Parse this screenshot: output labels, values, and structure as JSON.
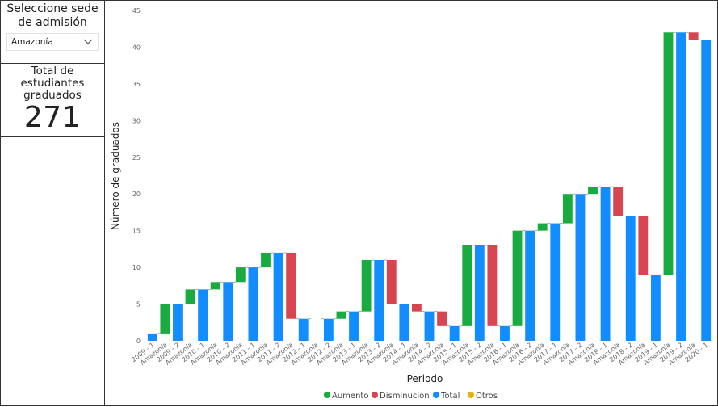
{
  "slicer": {
    "title": "Seleccione sede de admisión",
    "selected": "Amazonía"
  },
  "card": {
    "title": "Total de estudiantes graduados",
    "value": "271"
  },
  "colors": {
    "increase": "#1AAB40",
    "decrease": "#D64550",
    "total": "#118DFF",
    "other": "#E5B300"
  },
  "chart_data": {
    "type": "bar",
    "subtype": "waterfall",
    "xlabel": "Periodo",
    "ylabel": "Número de graduados",
    "ylim": [
      0,
      45
    ],
    "yticks": [
      0,
      5,
      10,
      15,
      20,
      25,
      30,
      35,
      40,
      45
    ],
    "legend": [
      "Aumento",
      "Disminución",
      "Total",
      "Otros"
    ],
    "legend_position": "bottom",
    "grid": false,
    "bars": [
      {
        "label": "2009 - 1",
        "kind": "total",
        "from": 0,
        "to": 1
      },
      {
        "label": "Amazonía",
        "kind": "increase",
        "from": 1,
        "to": 5
      },
      {
        "label": "2009 - 2",
        "kind": "total",
        "from": 0,
        "to": 5
      },
      {
        "label": "Amazonía",
        "kind": "increase",
        "from": 5,
        "to": 7
      },
      {
        "label": "2010 - 1",
        "kind": "total",
        "from": 0,
        "to": 7
      },
      {
        "label": "Amazonía",
        "kind": "increase",
        "from": 7,
        "to": 8
      },
      {
        "label": "2010 - 2",
        "kind": "total",
        "from": 0,
        "to": 8
      },
      {
        "label": "Amazonía",
        "kind": "increase",
        "from": 8,
        "to": 10
      },
      {
        "label": "2011 - 1",
        "kind": "total",
        "from": 0,
        "to": 10
      },
      {
        "label": "Amazonía",
        "kind": "increase",
        "from": 10,
        "to": 12
      },
      {
        "label": "2011 - 2",
        "kind": "total",
        "from": 0,
        "to": 12
      },
      {
        "label": "Amazonía",
        "kind": "decrease",
        "from": 12,
        "to": 3
      },
      {
        "label": "2012 - 1",
        "kind": "total",
        "from": 0,
        "to": 3
      },
      {
        "label": "Amazonía",
        "kind": "none",
        "from": 3,
        "to": 3
      },
      {
        "label": "2012 - 2",
        "kind": "total",
        "from": 0,
        "to": 3
      },
      {
        "label": "Amazonía",
        "kind": "increase",
        "from": 3,
        "to": 4
      },
      {
        "label": "2013 - 1",
        "kind": "total",
        "from": 0,
        "to": 4
      },
      {
        "label": "Amazonía",
        "kind": "increase",
        "from": 4,
        "to": 11
      },
      {
        "label": "2013 - 2",
        "kind": "total",
        "from": 0,
        "to": 11
      },
      {
        "label": "Amazonía",
        "kind": "decrease",
        "from": 11,
        "to": 5
      },
      {
        "label": "2014 - 1",
        "kind": "total",
        "from": 0,
        "to": 5
      },
      {
        "label": "Amazonía",
        "kind": "decrease",
        "from": 5,
        "to": 4
      },
      {
        "label": "2014 - 2",
        "kind": "total",
        "from": 0,
        "to": 4
      },
      {
        "label": "Amazonía",
        "kind": "decrease",
        "from": 4,
        "to": 2
      },
      {
        "label": "2015 - 1",
        "kind": "total",
        "from": 0,
        "to": 2
      },
      {
        "label": "Amazonía",
        "kind": "increase",
        "from": 2,
        "to": 13
      },
      {
        "label": "2015 - 2",
        "kind": "total",
        "from": 0,
        "to": 13
      },
      {
        "label": "Amazonía",
        "kind": "decrease",
        "from": 13,
        "to": 2
      },
      {
        "label": "2016 - 1",
        "kind": "total",
        "from": 0,
        "to": 2
      },
      {
        "label": "Amazonía",
        "kind": "increase",
        "from": 2,
        "to": 15
      },
      {
        "label": "2016 - 2",
        "kind": "total",
        "from": 0,
        "to": 15
      },
      {
        "label": "Amazonía",
        "kind": "increase",
        "from": 15,
        "to": 16
      },
      {
        "label": "2017 - 1",
        "kind": "total",
        "from": 0,
        "to": 16
      },
      {
        "label": "Amazonía",
        "kind": "increase",
        "from": 16,
        "to": 20
      },
      {
        "label": "2017 - 2",
        "kind": "total",
        "from": 0,
        "to": 20
      },
      {
        "label": "Amazonía",
        "kind": "increase",
        "from": 20,
        "to": 21
      },
      {
        "label": "2018 - 1",
        "kind": "total",
        "from": 0,
        "to": 21
      },
      {
        "label": "Amazonía",
        "kind": "decrease",
        "from": 21,
        "to": 17
      },
      {
        "label": "2018 - 2",
        "kind": "total",
        "from": 0,
        "to": 17
      },
      {
        "label": "Amazonía",
        "kind": "decrease",
        "from": 17,
        "to": 9
      },
      {
        "label": "2019 - 1",
        "kind": "total",
        "from": 0,
        "to": 9
      },
      {
        "label": "Amazonía",
        "kind": "increase",
        "from": 9,
        "to": 42
      },
      {
        "label": "2019 - 2",
        "kind": "total",
        "from": 0,
        "to": 42
      },
      {
        "label": "Amazonía",
        "kind": "decrease",
        "from": 42,
        "to": 41
      },
      {
        "label": "2020 - 1",
        "kind": "total",
        "from": 0,
        "to": 41
      }
    ]
  }
}
